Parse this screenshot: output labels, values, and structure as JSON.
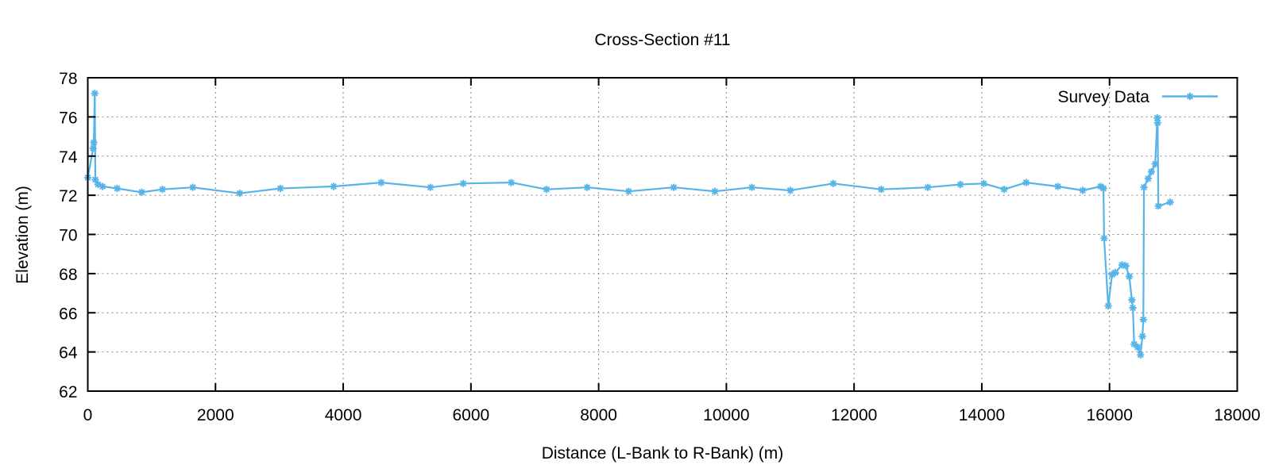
{
  "title": "Cross-Section #11",
  "axes": {
    "x_label": "Distance (L-Bank to R-Bank) (m)",
    "y_label": "Elevation (m)",
    "x_ticks": [
      0,
      2000,
      4000,
      6000,
      8000,
      10000,
      12000,
      14000,
      16000,
      18000
    ],
    "y_ticks": [
      62,
      64,
      66,
      68,
      70,
      72,
      74,
      76,
      78
    ]
  },
  "legend": {
    "label": "Survey Data",
    "position": "top-right"
  },
  "colors": {
    "series": "#56B4E9",
    "grid": "#848484",
    "border": "#000000",
    "text": "#000000",
    "background": "#ffffff"
  },
  "chart_data": {
    "type": "line",
    "title": "Cross-Section #11",
    "xlabel": "Distance (L-Bank to R-Bank) (m)",
    "ylabel": "Elevation (m)",
    "xlim": [
      0,
      18000
    ],
    "ylim": [
      62,
      78
    ],
    "grid": true,
    "marker": "asterisk",
    "legend_position": "top-right",
    "series": [
      {
        "name": "Survey Data",
        "color": "#56B4E9",
        "points": [
          [
            0,
            72.9
          ],
          [
            85,
            74.4
          ],
          [
            95,
            74.7
          ],
          [
            110,
            77.2
          ],
          [
            118,
            72.8
          ],
          [
            160,
            72.55
          ],
          [
            230,
            72.45
          ],
          [
            460,
            72.35
          ],
          [
            845,
            72.15
          ],
          [
            1170,
            72.3
          ],
          [
            1645,
            72.4
          ],
          [
            2380,
            72.1
          ],
          [
            3015,
            72.35
          ],
          [
            3850,
            72.45
          ],
          [
            4595,
            72.65
          ],
          [
            5365,
            72.4
          ],
          [
            5880,
            72.6
          ],
          [
            6630,
            72.65
          ],
          [
            7185,
            72.3
          ],
          [
            7820,
            72.4
          ],
          [
            8470,
            72.2
          ],
          [
            9175,
            72.4
          ],
          [
            9820,
            72.2
          ],
          [
            10400,
            72.4
          ],
          [
            11000,
            72.25
          ],
          [
            11675,
            72.6
          ],
          [
            12425,
            72.3
          ],
          [
            13155,
            72.4
          ],
          [
            13665,
            72.55
          ],
          [
            14030,
            72.6
          ],
          [
            14350,
            72.3
          ],
          [
            14695,
            72.65
          ],
          [
            15190,
            72.45
          ],
          [
            15580,
            72.25
          ],
          [
            15860,
            72.45
          ],
          [
            15905,
            72.35
          ],
          [
            15915,
            69.8
          ],
          [
            15980,
            66.35
          ],
          [
            16040,
            67.95
          ],
          [
            16090,
            68.05
          ],
          [
            16195,
            68.45
          ],
          [
            16255,
            68.4
          ],
          [
            16310,
            67.85
          ],
          [
            16350,
            66.65
          ],
          [
            16365,
            66.25
          ],
          [
            16385,
            64.4
          ],
          [
            16440,
            64.25
          ],
          [
            16485,
            63.85
          ],
          [
            16515,
            64.8
          ],
          [
            16530,
            65.65
          ],
          [
            16540,
            72.4
          ],
          [
            16605,
            72.85
          ],
          [
            16655,
            73.2
          ],
          [
            16715,
            73.6
          ],
          [
            16748,
            75.95
          ],
          [
            16753,
            75.7
          ],
          [
            16765,
            71.45
          ],
          [
            16950,
            71.65
          ]
        ]
      }
    ]
  }
}
